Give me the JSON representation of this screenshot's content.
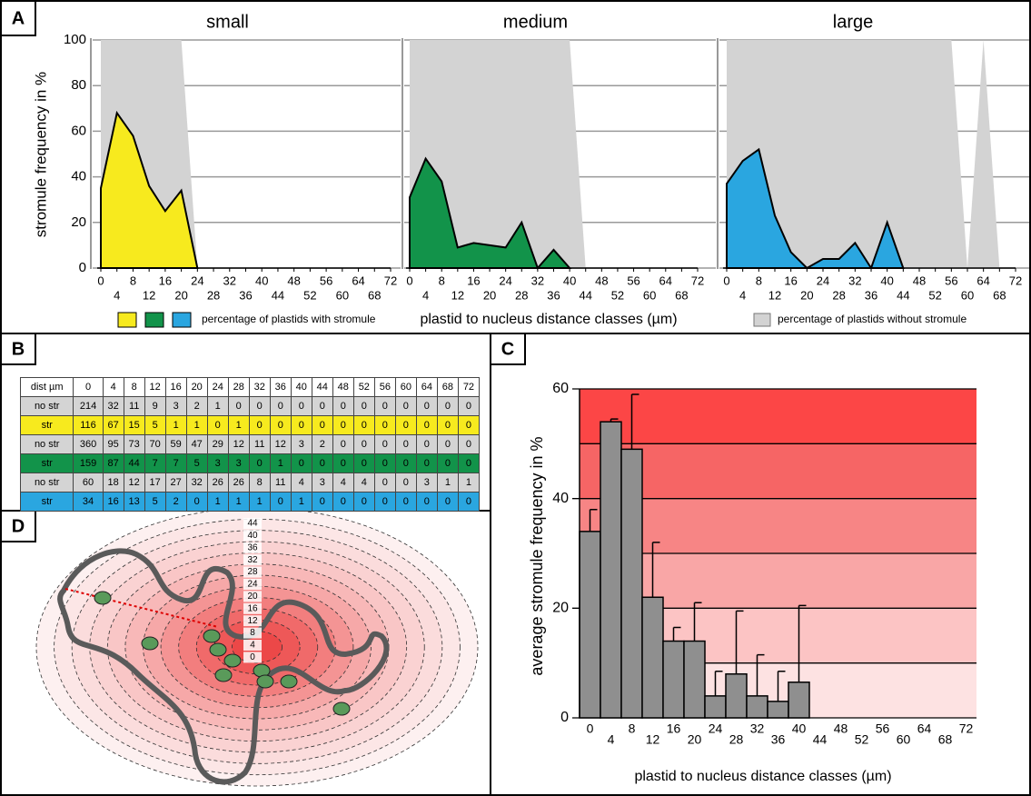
{
  "panels": [
    "A",
    "B",
    "C",
    "D"
  ],
  "panel_a": {
    "legend_with": "percentage of plastids with stromule",
    "legend_without": "percentage of plastids without stromule",
    "xlabel": "plastid to nucleus distance classes (µm)"
  },
  "chart_data": [
    {
      "type": "area",
      "title": "small",
      "ylabel": "stromule frequency in %",
      "x": [
        0,
        4,
        8,
        12,
        16,
        20,
        24,
        28,
        32,
        36,
        40,
        44,
        48,
        52,
        56,
        60,
        64,
        68,
        72
      ],
      "xlim": [
        0,
        72
      ],
      "xticks": [
        0,
        4,
        8,
        12,
        16,
        20,
        24,
        28,
        32,
        36,
        40,
        44,
        48,
        52,
        56,
        60,
        64,
        68,
        72
      ],
      "ylim": [
        0,
        100
      ],
      "yticks": [
        0,
        20,
        40,
        60,
        80,
        100
      ],
      "grid": true,
      "series": [
        {
          "color": "#d3d3d3",
          "values": [
            100,
            100,
            100,
            100,
            100,
            100,
            0,
            null,
            null,
            null,
            null,
            null,
            null,
            null,
            null,
            null,
            null,
            null,
            null
          ]
        },
        {
          "color": "#f7ea1e",
          "values": [
            35,
            68,
            58,
            36,
            25,
            34,
            0,
            null,
            null,
            null,
            null,
            null,
            null,
            null,
            null,
            null,
            null,
            null,
            null
          ]
        }
      ]
    },
    {
      "type": "area",
      "title": "medium",
      "x": [
        0,
        4,
        8,
        12,
        16,
        20,
        24,
        28,
        32,
        36,
        40,
        44,
        48,
        52,
        56,
        60,
        64,
        68,
        72
      ],
      "xlim": [
        0,
        72
      ],
      "xticks": [
        0,
        4,
        8,
        12,
        16,
        20,
        24,
        28,
        32,
        36,
        40,
        44,
        48,
        52,
        56,
        60,
        64,
        68,
        72
      ],
      "ylim": [
        0,
        100
      ],
      "grid": true,
      "series": [
        {
          "color": "#d3d3d3",
          "values": [
            100,
            100,
            100,
            100,
            100,
            100,
            100,
            100,
            100,
            100,
            100,
            0,
            null,
            null,
            null,
            null,
            null,
            null,
            null
          ]
        },
        {
          "color": "#12934a",
          "values": [
            31,
            48,
            38,
            9,
            11,
            10,
            9,
            20,
            0,
            8,
            0,
            null,
            null,
            null,
            null,
            null,
            null,
            null,
            null
          ]
        }
      ]
    },
    {
      "type": "area",
      "title": "large",
      "x": [
        0,
        4,
        8,
        12,
        16,
        20,
        24,
        28,
        32,
        36,
        40,
        44,
        48,
        52,
        56,
        60,
        64,
        68,
        72
      ],
      "xlim": [
        0,
        72
      ],
      "xticks": [
        0,
        4,
        8,
        12,
        16,
        20,
        24,
        28,
        32,
        36,
        40,
        44,
        48,
        52,
        56,
        60,
        64,
        68,
        72
      ],
      "ylim": [
        0,
        100
      ],
      "grid": true,
      "series": [
        {
          "color": "#d3d3d3",
          "values": [
            100,
            100,
            100,
            100,
            100,
            100,
            100,
            100,
            100,
            100,
            100,
            100,
            100,
            100,
            100,
            0,
            100,
            0,
            null
          ]
        },
        {
          "color": "#2aa6e0",
          "values": [
            37,
            47,
            52,
            23,
            7,
            0,
            4,
            4,
            11,
            0,
            20,
            0,
            null,
            null,
            null,
            null,
            null,
            null,
            null
          ]
        }
      ]
    },
    {
      "type": "bar",
      "ylabel": "average stromule frequency in %",
      "xlabel": "plastid to nucleus distance classes (µm)",
      "x": [
        0,
        4,
        8,
        12,
        16,
        20,
        24,
        28,
        32,
        36,
        40,
        44,
        48,
        52,
        56,
        60,
        64,
        68,
        72
      ],
      "xlim": [
        -2,
        74
      ],
      "xticks": [
        0,
        4,
        8,
        12,
        16,
        20,
        24,
        28,
        32,
        36,
        40,
        44,
        48,
        52,
        56,
        60,
        64,
        68,
        72
      ],
      "ylim": [
        0,
        60
      ],
      "yticks": [
        0,
        20,
        40,
        60
      ],
      "minor_yticks": [
        10,
        30,
        50
      ],
      "color": "#8f8f8f",
      "values": [
        34,
        54,
        49,
        22,
        14,
        14,
        4,
        8,
        4,
        3,
        6.5,
        null,
        null,
        null,
        null,
        null,
        null,
        null,
        null
      ],
      "errors": [
        4,
        0.5,
        10,
        10,
        2.5,
        7,
        4.5,
        11.5,
        7.5,
        5.5,
        14,
        null,
        null,
        null,
        null,
        null,
        null,
        null,
        null
      ]
    }
  ],
  "table": {
    "header": [
      "dist µm",
      "0",
      "4",
      "8",
      "12",
      "16",
      "20",
      "24",
      "28",
      "32",
      "36",
      "40",
      "44",
      "48",
      "52",
      "56",
      "60",
      "64",
      "68",
      "72"
    ],
    "rows": [
      [
        "no str",
        "214",
        "32",
        "11",
        "9",
        "3",
        "2",
        "1",
        "0",
        "0",
        "0",
        "0",
        "0",
        "0",
        "0",
        "0",
        "0",
        "0",
        "0",
        "0"
      ],
      [
        "str",
        "116",
        "67",
        "15",
        "5",
        "1",
        "1",
        "0",
        "1",
        "0",
        "0",
        "0",
        "0",
        "0",
        "0",
        "0",
        "0",
        "0",
        "0",
        "0"
      ],
      [
        "no str",
        "360",
        "95",
        "73",
        "70",
        "59",
        "47",
        "29",
        "12",
        "11",
        "12",
        "3",
        "2",
        "0",
        "0",
        "0",
        "0",
        "0",
        "0",
        "0"
      ],
      [
        "str",
        "159",
        "87",
        "44",
        "7",
        "7",
        "5",
        "3",
        "3",
        "0",
        "1",
        "0",
        "0",
        "0",
        "0",
        "0",
        "0",
        "0",
        "0",
        "0"
      ],
      [
        "no str",
        "60",
        "18",
        "12",
        "17",
        "27",
        "32",
        "26",
        "26",
        "8",
        "11",
        "4",
        "3",
        "4",
        "4",
        "0",
        "0",
        "3",
        "1",
        "1"
      ],
      [
        "str",
        "34",
        "16",
        "13",
        "5",
        "2",
        "0",
        "1",
        "1",
        "1",
        "0",
        "1",
        "0",
        "0",
        "0",
        "0",
        "0",
        "0",
        "0",
        "0"
      ]
    ]
  },
  "diagram": {
    "ring_labels": [
      "44",
      "40",
      "36",
      "32",
      "28",
      "24",
      "20",
      "16",
      "12",
      "8",
      "4",
      "0"
    ]
  }
}
